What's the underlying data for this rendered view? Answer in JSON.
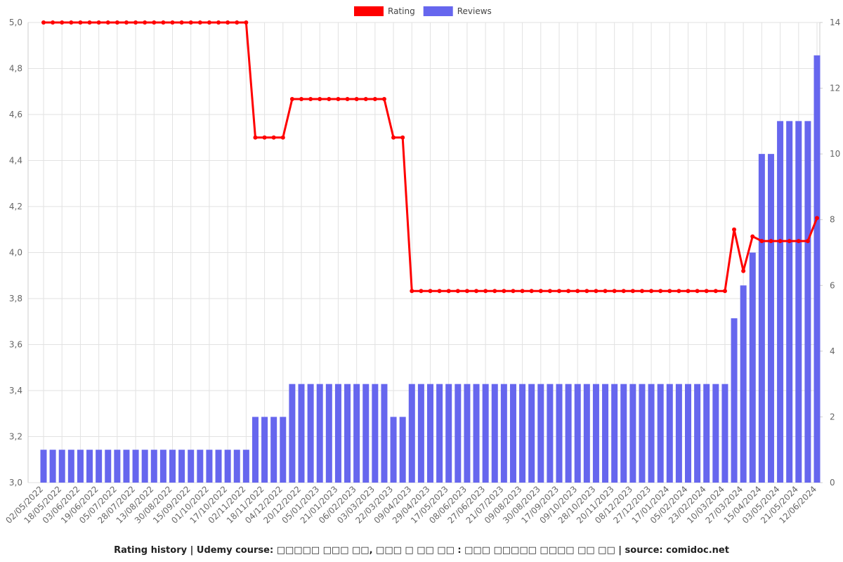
{
  "chart_data": {
    "type": "bar-line",
    "title": "Rating history | Udemy course: □□□□□ □□□ □□, □□□ □ □□ □□ : □□□ □□□□□ □□□□ □□ □□ | source: comidoc.net",
    "categories": [
      "02/05/2022",
      null,
      "18/05/2022",
      null,
      "03/06/2022",
      null,
      "19/06/2022",
      null,
      "05/07/2022",
      null,
      "28/07/2022",
      null,
      "13/08/2022",
      null,
      "30/08/2022",
      null,
      "15/09/2022",
      null,
      "01/10/2022",
      null,
      "17/10/2022",
      null,
      "02/11/2022",
      null,
      "18/11/2022",
      null,
      "04/12/2022",
      null,
      "20/12/2022",
      null,
      "05/01/2023",
      null,
      "21/01/2023",
      null,
      "06/02/2023",
      null,
      "03/03/2023",
      null,
      "22/03/2023",
      null,
      "09/04/2023",
      null,
      "29/04/2023",
      null,
      "17/05/2023",
      null,
      "08/06/2023",
      null,
      "27/06/2023",
      null,
      "21/07/2023",
      null,
      "09/08/2023",
      null,
      "30/08/2023",
      null,
      "17/09/2023",
      null,
      "09/10/2023",
      null,
      "28/10/2023",
      null,
      "20/11/2023",
      null,
      "08/12/2023",
      null,
      "27/12/2023",
      null,
      "17/01/2024",
      null,
      "05/02/2024",
      null,
      "23/02/2024",
      null,
      "10/03/2024",
      null,
      "27/03/2024",
      null,
      "15/04/2024",
      null,
      "03/05/2024",
      null,
      "21/05/2024",
      null,
      "12/06/2024"
    ],
    "series": [
      {
        "name": "Rating",
        "color": "#ff0000",
        "axis": "y",
        "values": [
          5,
          5,
          5,
          5,
          5,
          5,
          5,
          5,
          5,
          5,
          5,
          5,
          5,
          5,
          5,
          5,
          5,
          5,
          5,
          5,
          5,
          5,
          5,
          4.5,
          4.5,
          4.5,
          4.5,
          4.667,
          4.667,
          4.667,
          4.667,
          4.667,
          4.667,
          4.667,
          4.667,
          4.667,
          4.667,
          4.667,
          4.5,
          4.5,
          3.833,
          3.833,
          3.833,
          3.833,
          3.833,
          3.833,
          3.833,
          3.833,
          3.833,
          3.833,
          3.833,
          3.833,
          3.833,
          3.833,
          3.833,
          3.833,
          3.833,
          3.833,
          3.833,
          3.833,
          3.833,
          3.833,
          3.833,
          3.833,
          3.833,
          3.833,
          3.833,
          3.833,
          3.833,
          3.833,
          3.833,
          3.833,
          3.833,
          3.833,
          3.833,
          4.1,
          3.92,
          4.07,
          4.05,
          4.05,
          4.05,
          4.05,
          4.05,
          4.05,
          4.15
        ]
      },
      {
        "name": "Reviews",
        "color": "#6666ee",
        "axis": "y2",
        "values": [
          1,
          1,
          1,
          1,
          1,
          1,
          1,
          1,
          1,
          1,
          1,
          1,
          1,
          1,
          1,
          1,
          1,
          1,
          1,
          1,
          1,
          1,
          1,
          2,
          2,
          2,
          2,
          3,
          3,
          3,
          3,
          3,
          3,
          3,
          3,
          3,
          3,
          3,
          2,
          2,
          3,
          3,
          3,
          3,
          3,
          3,
          3,
          3,
          3,
          3,
          3,
          3,
          3,
          3,
          3,
          3,
          3,
          3,
          3,
          3,
          3,
          3,
          3,
          3,
          3,
          3,
          3,
          3,
          3,
          3,
          3,
          3,
          3,
          3,
          3,
          5,
          6,
          7,
          10,
          10,
          11,
          11,
          11,
          11,
          13
        ]
      }
    ],
    "ylim": [
      3,
      5
    ],
    "yticks": [
      {
        "value": 3,
        "label": "3,0"
      },
      {
        "value": 3.2,
        "label": "3,2"
      },
      {
        "value": 3.4,
        "label": "3,4"
      },
      {
        "value": 3.6,
        "label": "3,6"
      },
      {
        "value": 3.8,
        "label": "3,8"
      },
      {
        "value": 4,
        "label": "4,0"
      },
      {
        "value": 4.2,
        "label": "4,2"
      },
      {
        "value": 4.4,
        "label": "4,4"
      },
      {
        "value": 4.6,
        "label": "4,6"
      },
      {
        "value": 4.8,
        "label": "4,8"
      },
      {
        "value": 5,
        "label": "5,0"
      }
    ],
    "y2lim": [
      0,
      14
    ],
    "y2ticks": [
      0,
      2,
      4,
      6,
      8,
      10,
      12,
      14
    ],
    "grid": true
  }
}
